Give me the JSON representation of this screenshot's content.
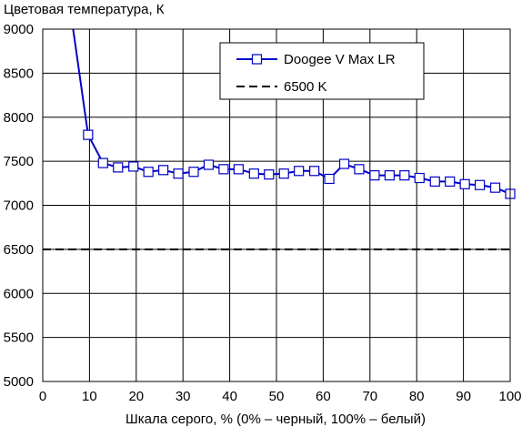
{
  "chart_data": {
    "type": "line",
    "title": "Цветовая температура, К",
    "xlabel": "Шкала серого, % (0% – черный, 100% – белый)",
    "ylabel": "",
    "xlim": [
      0,
      100
    ],
    "ylim": [
      5000,
      9000
    ],
    "xticks": [
      0,
      10,
      20,
      30,
      40,
      50,
      60,
      70,
      80,
      90,
      100
    ],
    "yticks": [
      5000,
      5500,
      6000,
      6500,
      7000,
      7500,
      8000,
      8500,
      9000
    ],
    "xtick_labels": [
      "0",
      "10",
      "20",
      "30",
      "40",
      "50",
      "60",
      "70",
      "80",
      "90",
      "100"
    ],
    "ytick_labels": [
      "5000",
      "5500",
      "6000",
      "6500",
      "7000",
      "7500",
      "8000",
      "8500",
      "9000"
    ],
    "grid": true,
    "legend_position": "top-right",
    "series": [
      {
        "name": "Doogee V Max LR",
        "color": "#0000c8",
        "marker": "square",
        "x": [
          6.5,
          9.7,
          12.9,
          16.1,
          19.4,
          22.6,
          25.8,
          29.0,
          32.3,
          35.5,
          38.7,
          41.9,
          45.2,
          48.4,
          51.6,
          54.8,
          58.1,
          61.3,
          64.5,
          67.7,
          71.0,
          74.2,
          77.4,
          80.6,
          83.9,
          87.1,
          90.3,
          93.5,
          96.8,
          100
        ],
        "y": [
          9000,
          7800,
          7480,
          7430,
          7440,
          7380,
          7400,
          7360,
          7380,
          7460,
          7410,
          7410,
          7360,
          7350,
          7360,
          7390,
          7390,
          7300,
          7470,
          7410,
          7340,
          7340,
          7340,
          7310,
          7270,
          7270,
          7240,
          7230,
          7200,
          7130
        ]
      },
      {
        "name": "6500 K",
        "color": "#000000",
        "style": "dashed",
        "x": [
          0,
          100
        ],
        "y": [
          6500,
          6500
        ]
      }
    ]
  }
}
